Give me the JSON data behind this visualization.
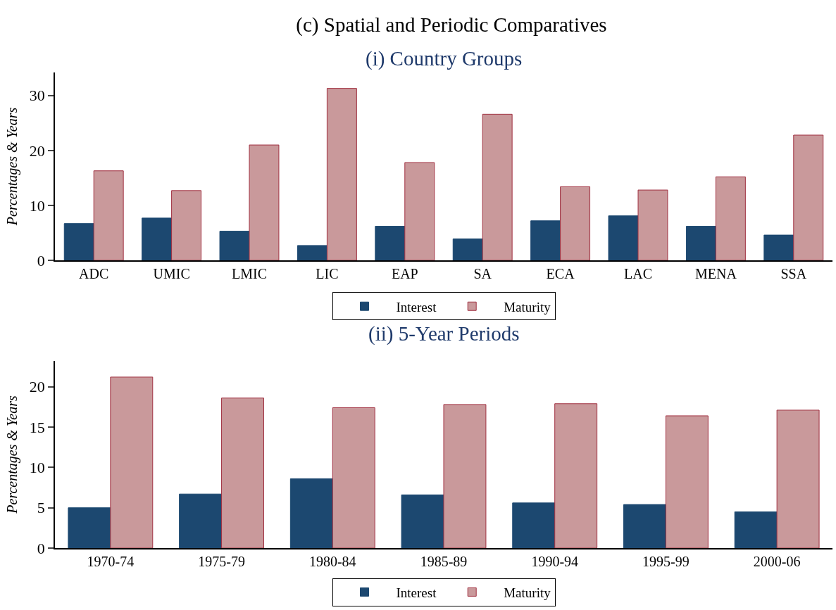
{
  "chart_data": [
    {
      "type": "bar",
      "title": "(c) Spatial and Periodic Comparatives",
      "subtitle": "(i) Country Groups",
      "ylabel": "Percentages & Years",
      "categories": [
        "ADC",
        "UMIC",
        "LMIC",
        "LIC",
        "EAP",
        "SA",
        "ECA",
        "LAC",
        "MENA",
        "SSA"
      ],
      "series": [
        {
          "name": "Interest",
          "color": "#1c4870",
          "values": [
            6.7,
            7.7,
            5.3,
            2.7,
            6.2,
            3.9,
            7.2,
            8.1,
            6.2,
            4.6
          ]
        },
        {
          "name": "Maturity",
          "color": "#c9999b",
          "values": [
            16.3,
            12.7,
            21.0,
            31.3,
            17.8,
            26.6,
            13.4,
            12.8,
            15.2,
            22.8
          ]
        }
      ],
      "ylim": [
        0,
        34.2
      ],
      "yticks": [
        0,
        10,
        20,
        30
      ],
      "grid": false,
      "legend": "bottom"
    },
    {
      "type": "bar",
      "title": "(ii) 5-Year Periods",
      "ylabel": "Percentages & Years",
      "categories": [
        "1970-74",
        "1975-79",
        "1980-84",
        "1985-89",
        "1990-94",
        "1995-99",
        "2000-06"
      ],
      "series": [
        {
          "name": "Interest",
          "color": "#1c4870",
          "values": [
            5.0,
            6.7,
            8.6,
            6.6,
            5.6,
            5.4,
            4.5
          ]
        },
        {
          "name": "Maturity",
          "color": "#c9999b",
          "values": [
            21.2,
            18.6,
            17.4,
            17.8,
            17.9,
            16.4,
            17.1
          ]
        }
      ],
      "ylim": [
        0,
        23.2
      ],
      "yticks": [
        0,
        5,
        10,
        15,
        20
      ],
      "grid": false,
      "legend": "bottom"
    }
  ]
}
